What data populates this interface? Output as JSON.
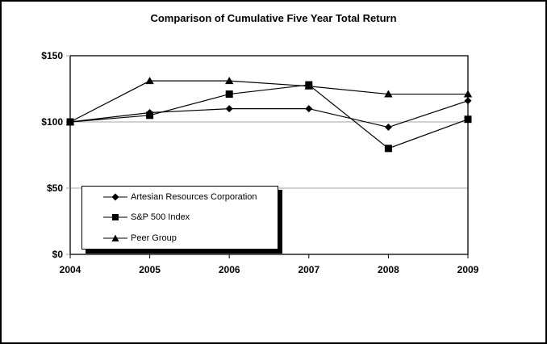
{
  "title": "Comparison of Cumulative Five Year Total Return",
  "chart_data": {
    "type": "line",
    "title": "Comparison of Cumulative Five Year Total Return",
    "categories": [
      "2004",
      "2005",
      "2006",
      "2007",
      "2008",
      "2009"
    ],
    "series": [
      {
        "name": "Artesian Resources Corporation",
        "marker": "diamond",
        "values": [
          100,
          107,
          110,
          110,
          96,
          116
        ]
      },
      {
        "name": "S&P 500 Index",
        "marker": "square",
        "values": [
          100,
          105,
          121,
          128,
          80,
          102
        ]
      },
      {
        "name": "Peer Group",
        "marker": "triangle",
        "values": [
          100,
          131,
          131,
          127,
          121,
          121
        ]
      }
    ],
    "ylim": [
      0,
      150
    ],
    "y_ticks": [
      {
        "value": 0,
        "label": "$0"
      },
      {
        "value": 50,
        "label": "$50"
      },
      {
        "value": 100,
        "label": "$100"
      },
      {
        "value": 150,
        "label": "$150"
      }
    ],
    "grid": true,
    "legend_position": "inside-bottom-left",
    "line_color": "#000000",
    "grid_color": "#a6a6a6",
    "plot_border_color": "#000000"
  }
}
